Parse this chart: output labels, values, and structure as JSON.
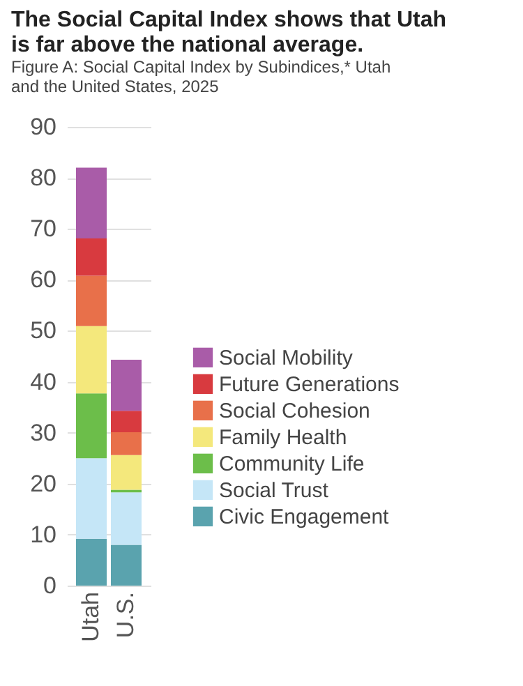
{
  "chart_data": {
    "type": "bar",
    "stacked": true,
    "title": "The Social Capital Index shows that Utah is far above the national average.",
    "subtitle": "Figure A: Social Capital Index by Subindices,* Utah and the United States, 2025",
    "categories": [
      "Utah",
      "U.S."
    ],
    "series": [
      {
        "name": "Civic Engagement",
        "color": "#5aa3ae",
        "values": [
          9.2,
          8.0
        ]
      },
      {
        "name": "Social Trust",
        "color": "#c5e6f7",
        "values": [
          15.8,
          10.3
        ]
      },
      {
        "name": "Community Life",
        "color": "#6cbe4a",
        "values": [
          12.7,
          0.5
        ]
      },
      {
        "name": "Family Health",
        "color": "#f4e87c",
        "values": [
          13.2,
          6.8
        ]
      },
      {
        "name": "Social Cohesion",
        "color": "#e8704a",
        "values": [
          9.9,
          4.5
        ]
      },
      {
        "name": "Future Generations",
        "color": "#d83a3f",
        "values": [
          7.3,
          4.2
        ]
      },
      {
        "name": "Social Mobility",
        "color": "#a95ca8",
        "values": [
          13.9,
          10.0
        ]
      }
    ],
    "ylim": [
      0,
      90
    ],
    "yticks": [
      0,
      10,
      20,
      30,
      40,
      50,
      60,
      70,
      80,
      90
    ],
    "grid": "y",
    "legend": "right"
  }
}
